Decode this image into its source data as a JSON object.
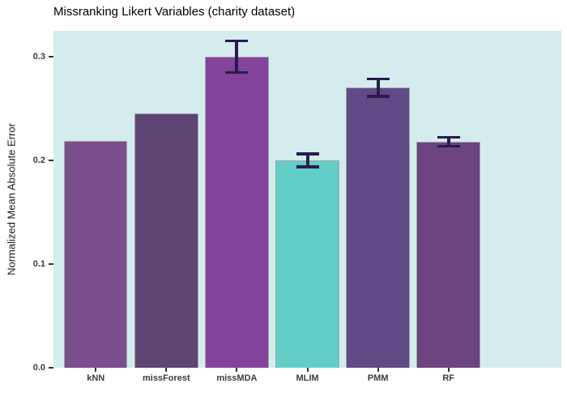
{
  "chart_data": {
    "type": "bar",
    "title": "Missranking Likert Variables (charity dataset)",
    "xlabel": "",
    "ylabel": "Normalized Mean Absolute Error",
    "categories": [
      "kNN",
      "missForest",
      "missMDA",
      "MLIM",
      "PMM",
      "RF"
    ],
    "values": [
      0.219,
      0.245,
      0.3,
      0.2,
      0.27,
      0.218
    ],
    "errors": [
      null,
      null,
      0.014,
      0.005,
      0.007,
      0.003
    ],
    "bar_colors": [
      "#7B4E8D",
      "#5E4574",
      "#84439A",
      "#62CEC7",
      "#5F4A85",
      "#6B4480"
    ],
    "yticks": [
      0.0,
      0.1,
      0.2,
      0.3
    ],
    "ytick_labels": [
      "0.0",
      "0.1",
      "0.2",
      "0.3"
    ],
    "ylim": [
      0,
      0.325
    ],
    "grid": false,
    "legend": false,
    "panel_bg": "#D5ECEE",
    "bar_stroke": "#A0A6A8",
    "errorbar_color": "#2A1A4E",
    "tick_color": "#333333",
    "tick_label_color": "#3C3C3C"
  }
}
